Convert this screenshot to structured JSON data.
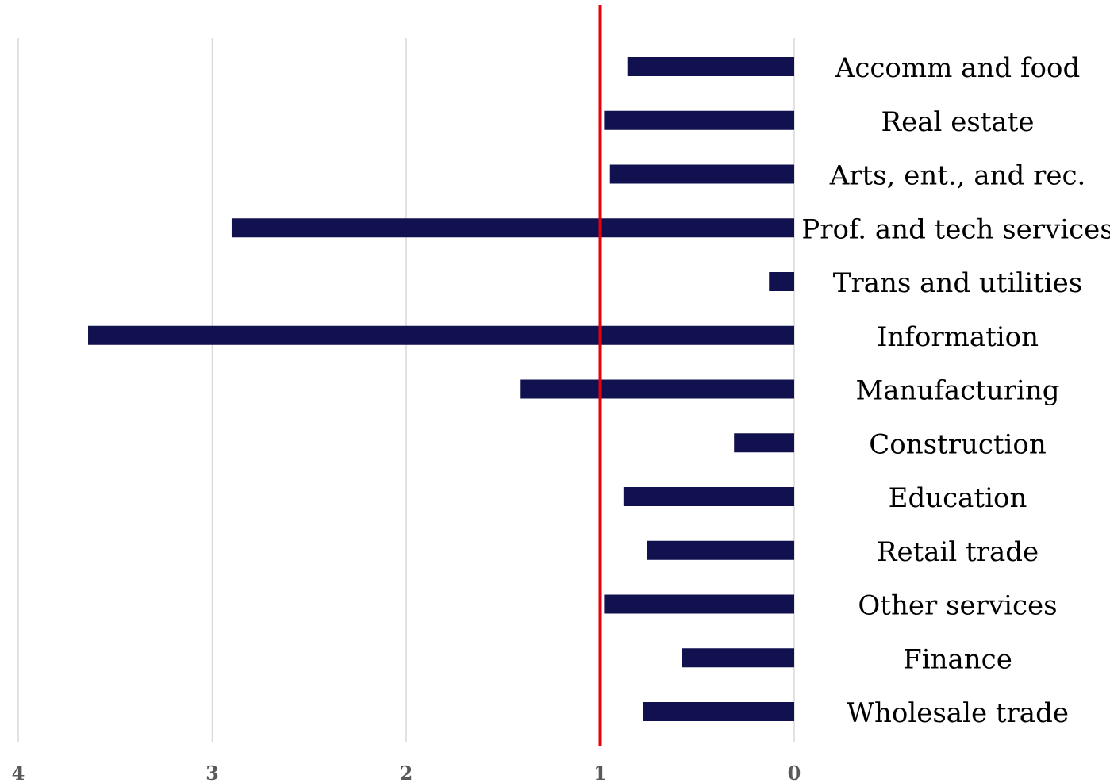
{
  "chart_data": {
    "type": "bar",
    "orientation": "horizontal",
    "x_axis_reversed": true,
    "categories": [
      "Accomm and food",
      "Real estate",
      "Arts, ent., and rec.",
      "Prof. and tech services",
      "Trans and utilities",
      "Information",
      "Manufacturing",
      "Construction",
      "Education",
      "Retail trade",
      "Other services",
      "Finance",
      "Wholesale trade"
    ],
    "values": [
      0.86,
      0.98,
      0.95,
      2.9,
      0.13,
      3.64,
      1.41,
      0.31,
      0.88,
      0.76,
      0.98,
      0.58,
      0.78
    ],
    "xlim": [
      0,
      4
    ],
    "xticks": [
      "0",
      "1",
      "2",
      "3",
      "4"
    ],
    "reference_line": 1,
    "title": "",
    "xlabel": "",
    "ylabel": "",
    "grid": true,
    "legend": "none",
    "colors": {
      "bar": "#12114f",
      "reference_line": "#e8000b",
      "grid": "#d9d9d9",
      "tick_label": "#595959"
    }
  }
}
